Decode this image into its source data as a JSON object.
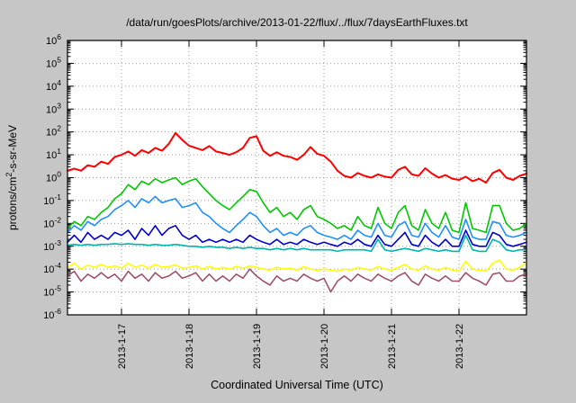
{
  "chart_data": {
    "type": "line",
    "title": "/data/run/goesPlots/archive/2013-01-22/flux/../flux/7daysEarthFluxes.txt",
    "xlabel": "Coordinated Universal Time (UTC)",
    "ylabel": "protons/cm^2-s-sr-MeV",
    "ylabel_parts": [
      {
        "t": "protons/cm"
      },
      {
        "t": "2",
        "sup": true
      },
      {
        "t": "-s-sr-MeV"
      }
    ],
    "grid": true,
    "legend": "none",
    "x_range": [
      16.2,
      23.0
    ],
    "x_start": 16.2,
    "x_step": 0.1,
    "x_ticks": [
      {
        "value": 17,
        "label": "2013-1-17"
      },
      {
        "value": 18,
        "label": "2013-1-18"
      },
      {
        "value": 19,
        "label": "2013-1-19"
      },
      {
        "value": 20,
        "label": "2013-1-20"
      },
      {
        "value": 21,
        "label": "2013-1-21"
      },
      {
        "value": 22,
        "label": "2013-1-22"
      }
    ],
    "y_log_range": [
      -6,
      6
    ],
    "y_tick_exponents": [
      -6,
      -5,
      -4,
      -3,
      -2,
      -1,
      0,
      1,
      2,
      3,
      4,
      5,
      6
    ],
    "colors": {
      "background": "#c6c6c6",
      "plot_background": "#ffffff",
      "grid": "#9a9a9a",
      "border": "#000000"
    },
    "series": [
      {
        "name": "maroon-channel",
        "color": "#a0506a",
        "width": 1.6,
        "values": [
          5e-05,
          8e-05,
          3e-05,
          6e-05,
          4e-05,
          7e-05,
          4e-05,
          6e-05,
          3e-05,
          8e-05,
          4e-05,
          6e-05,
          3e-05,
          7e-05,
          4e-05,
          5e-05,
          8e-05,
          4e-05,
          5e-05,
          7e-05,
          3e-05,
          6e-05,
          3e-05,
          5e-05,
          3e-05,
          6e-05,
          4e-05,
          0.0001,
          5e-05,
          3e-05,
          2e-05,
          5e-05,
          3e-05,
          4e-05,
          3e-05,
          6e-05,
          4e-05,
          3e-05,
          4e-05,
          1e-05,
          3e-05,
          5e-05,
          3e-05,
          6e-05,
          4e-05,
          3e-05,
          6e-05,
          4e-05,
          3e-05,
          5e-05,
          7e-05,
          3e-05,
          2e-05,
          6e-05,
          4e-05,
          3e-05,
          5e-05,
          3e-05,
          3e-05,
          7e-05,
          4e-05,
          3e-05,
          2e-05,
          6e-05,
          7e-05,
          3e-05,
          3e-05,
          5e-05,
          6e-05
        ]
      },
      {
        "name": "yellow-channel",
        "color": "#ffff00",
        "width": 1.6,
        "values": [
          0.00012,
          0.00018,
          0.0001,
          0.00015,
          0.00012,
          0.00016,
          0.00012,
          0.00014,
          0.00011,
          0.00018,
          0.00012,
          0.00015,
          0.00011,
          0.00016,
          0.00012,
          0.00013,
          0.00015,
          0.00011,
          0.00012,
          0.00014,
          0.0001,
          0.00013,
          0.0001,
          0.00012,
          0.0001,
          0.00013,
          0.00011,
          0.00014,
          0.00012,
          0.0001,
          9e-05,
          0.00012,
          0.0001,
          0.00011,
          9e-05,
          0.00013,
          0.0001,
          9e-05,
          0.0001,
          9e-05,
          8e-05,
          0.0001,
          9e-05,
          0.00012,
          0.0001,
          9e-05,
          0.00013,
          0.0001,
          9e-05,
          0.00012,
          0.00016,
          0.0001,
          9e-05,
          0.00014,
          0.0001,
          9e-05,
          0.00012,
          9e-05,
          8e-05,
          0.00022,
          0.0001,
          9e-05,
          8e-05,
          0.00018,
          0.00025,
          0.0001,
          9e-05,
          0.00012,
          0.0002
        ]
      },
      {
        "name": "teal-channel",
        "color": "#00b5ad",
        "width": 1.6,
        "values": [
          0.0011,
          0.0012,
          0.0011,
          0.0012,
          0.0011,
          0.0012,
          0.0012,
          0.0013,
          0.0012,
          0.0013,
          0.0012,
          0.0012,
          0.0011,
          0.0012,
          0.0011,
          0.0011,
          0.0012,
          0.0011,
          0.001,
          0.001,
          0.0009,
          0.001,
          0.0009,
          0.0009,
          0.0008,
          0.0009,
          0.0008,
          0.0009,
          0.0008,
          0.0008,
          0.0007,
          0.0008,
          0.0007,
          0.0008,
          0.0007,
          0.0008,
          0.0007,
          0.0007,
          0.0007,
          0.0007,
          0.0006,
          0.0007,
          0.0007,
          0.0007,
          0.0007,
          0.0006,
          0.002,
          0.0007,
          0.0006,
          0.0007,
          0.0008,
          0.0007,
          0.0006,
          0.0008,
          0.0007,
          0.0006,
          0.0007,
          0.0006,
          0.0006,
          0.003,
          0.0007,
          0.0006,
          0.0006,
          0.002,
          0.0015,
          0.0007,
          0.0006,
          0.0007,
          0.0007
        ]
      },
      {
        "name": "dark-blue-channel",
        "color": "#0000cd",
        "width": 1.6,
        "values": [
          0.0015,
          0.003,
          0.0015,
          0.004,
          0.002,
          0.003,
          0.002,
          0.004,
          0.003,
          0.005,
          0.002,
          0.006,
          0.003,
          0.008,
          0.003,
          0.006,
          0.008,
          0.003,
          0.002,
          0.003,
          0.0015,
          0.002,
          0.0015,
          0.002,
          0.0015,
          0.002,
          0.0015,
          0.003,
          0.002,
          0.0015,
          0.0012,
          0.002,
          0.0012,
          0.0015,
          0.0012,
          0.002,
          0.0015,
          0.0012,
          0.0015,
          0.0012,
          0.001,
          0.0015,
          0.0012,
          0.002,
          0.0012,
          0.001,
          0.003,
          0.0012,
          0.001,
          0.002,
          0.004,
          0.0012,
          0.001,
          0.003,
          0.0015,
          0.001,
          0.002,
          0.001,
          0.001,
          0.005,
          0.0012,
          0.001,
          0.001,
          0.004,
          0.003,
          0.0012,
          0.001,
          0.0012,
          0.0015
        ]
      },
      {
        "name": "light-blue-channel",
        "color": "#1e90ff",
        "width": 1.6,
        "values": [
          0.004,
          0.008,
          0.005,
          0.012,
          0.008,
          0.015,
          0.02,
          0.04,
          0.06,
          0.1,
          0.05,
          0.12,
          0.08,
          0.15,
          0.08,
          0.1,
          0.12,
          0.05,
          0.06,
          0.08,
          0.03,
          0.02,
          0.01,
          0.006,
          0.004,
          0.008,
          0.015,
          0.03,
          0.02,
          0.008,
          0.004,
          0.006,
          0.003,
          0.004,
          0.003,
          0.006,
          0.008,
          0.004,
          0.003,
          0.0025,
          0.002,
          0.003,
          0.002,
          0.005,
          0.003,
          0.0025,
          0.01,
          0.003,
          0.0025,
          0.008,
          0.012,
          0.003,
          0.0025,
          0.01,
          0.004,
          0.0025,
          0.008,
          0.0025,
          0.002,
          0.015,
          0.0025,
          0.002,
          0.002,
          0.012,
          0.01,
          0.003,
          0.0025,
          0.003,
          0.004
        ]
      },
      {
        "name": "green-channel",
        "color": "#00c800",
        "width": 1.6,
        "values": [
          0.006,
          0.012,
          0.008,
          0.02,
          0.015,
          0.03,
          0.05,
          0.12,
          0.2,
          0.5,
          0.3,
          0.7,
          0.5,
          0.9,
          0.6,
          0.8,
          1.0,
          0.5,
          0.7,
          0.9,
          0.4,
          0.2,
          0.1,
          0.06,
          0.04,
          0.08,
          0.15,
          0.3,
          0.25,
          0.08,
          0.03,
          0.05,
          0.02,
          0.03,
          0.015,
          0.04,
          0.06,
          0.02,
          0.015,
          0.01,
          0.006,
          0.008,
          0.005,
          0.02,
          0.008,
          0.006,
          0.05,
          0.01,
          0.006,
          0.03,
          0.06,
          0.008,
          0.005,
          0.04,
          0.01,
          0.006,
          0.03,
          0.005,
          0.004,
          0.08,
          0.006,
          0.005,
          0.004,
          0.06,
          0.06,
          0.01,
          0.005,
          0.006,
          0.01
        ]
      },
      {
        "name": "red-channel",
        "color": "#ff0000",
        "width": 2,
        "values": [
          2.0,
          2.5,
          2.0,
          3.5,
          3.0,
          5.0,
          4.0,
          8.0,
          10,
          14,
          9,
          16,
          12,
          20,
          15,
          30,
          90,
          45,
          25,
          20,
          16,
          24,
          14,
          12,
          10,
          13,
          20,
          55,
          65,
          15,
          9,
          13,
          9,
          8,
          6,
          10,
          22,
          11,
          9,
          5,
          2,
          1.2,
          1.0,
          1.6,
          1.2,
          1.0,
          1.4,
          1.1,
          1.0,
          2.2,
          3.0,
          1.4,
          1.2,
          2.6,
          1.5,
          1.0,
          1.3,
          0.9,
          0.8,
          1.1,
          0.7,
          0.9,
          0.6,
          1.6,
          2.2,
          1.0,
          0.8,
          1.2,
          1.5
        ]
      }
    ]
  }
}
